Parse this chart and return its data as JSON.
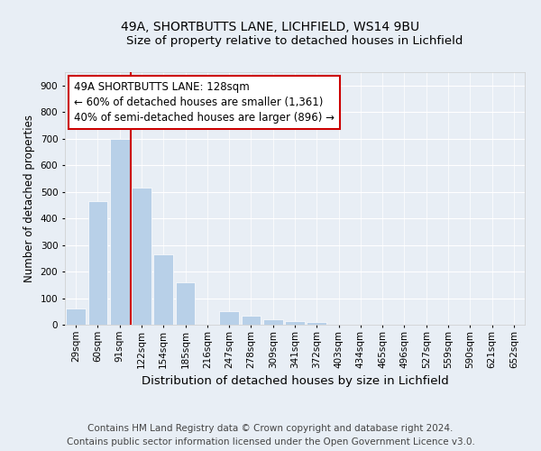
{
  "title1": "49A, SHORTBUTTS LANE, LICHFIELD, WS14 9BU",
  "title2": "Size of property relative to detached houses in Lichfield",
  "xlabel": "Distribution of detached houses by size in Lichfield",
  "ylabel": "Number of detached properties",
  "categories": [
    "29sqm",
    "60sqm",
    "91sqm",
    "122sqm",
    "154sqm",
    "185sqm",
    "216sqm",
    "247sqm",
    "278sqm",
    "309sqm",
    "341sqm",
    "372sqm",
    "403sqm",
    "434sqm",
    "465sqm",
    "496sqm",
    "527sqm",
    "559sqm",
    "590sqm",
    "621sqm",
    "652sqm"
  ],
  "values": [
    60,
    465,
    700,
    515,
    265,
    160,
    0,
    50,
    35,
    20,
    15,
    10,
    0,
    0,
    0,
    0,
    0,
    0,
    0,
    0,
    0
  ],
  "bar_color": "#b8d0e8",
  "vline_color": "#cc0000",
  "vline_xindex": 3,
  "annotation_text": "49A SHORTBUTTS LANE: 128sqm\n← 60% of detached houses are smaller (1,361)\n40% of semi-detached houses are larger (896) →",
  "annotation_box_facecolor": "white",
  "annotation_box_edgecolor": "#cc0000",
  "ylim": [
    0,
    950
  ],
  "yticks": [
    0,
    100,
    200,
    300,
    400,
    500,
    600,
    700,
    800,
    900
  ],
  "bg_color": "#e8eef5",
  "plot_bg_color": "#e8eef5",
  "footer": "Contains HM Land Registry data © Crown copyright and database right 2024.\nContains public sector information licensed under the Open Government Licence v3.0.",
  "title1_fontsize": 10,
  "title2_fontsize": 9.5,
  "xlabel_fontsize": 9.5,
  "ylabel_fontsize": 8.5,
  "tick_fontsize": 7.5,
  "annotation_fontsize": 8.5,
  "footer_fontsize": 7.5
}
